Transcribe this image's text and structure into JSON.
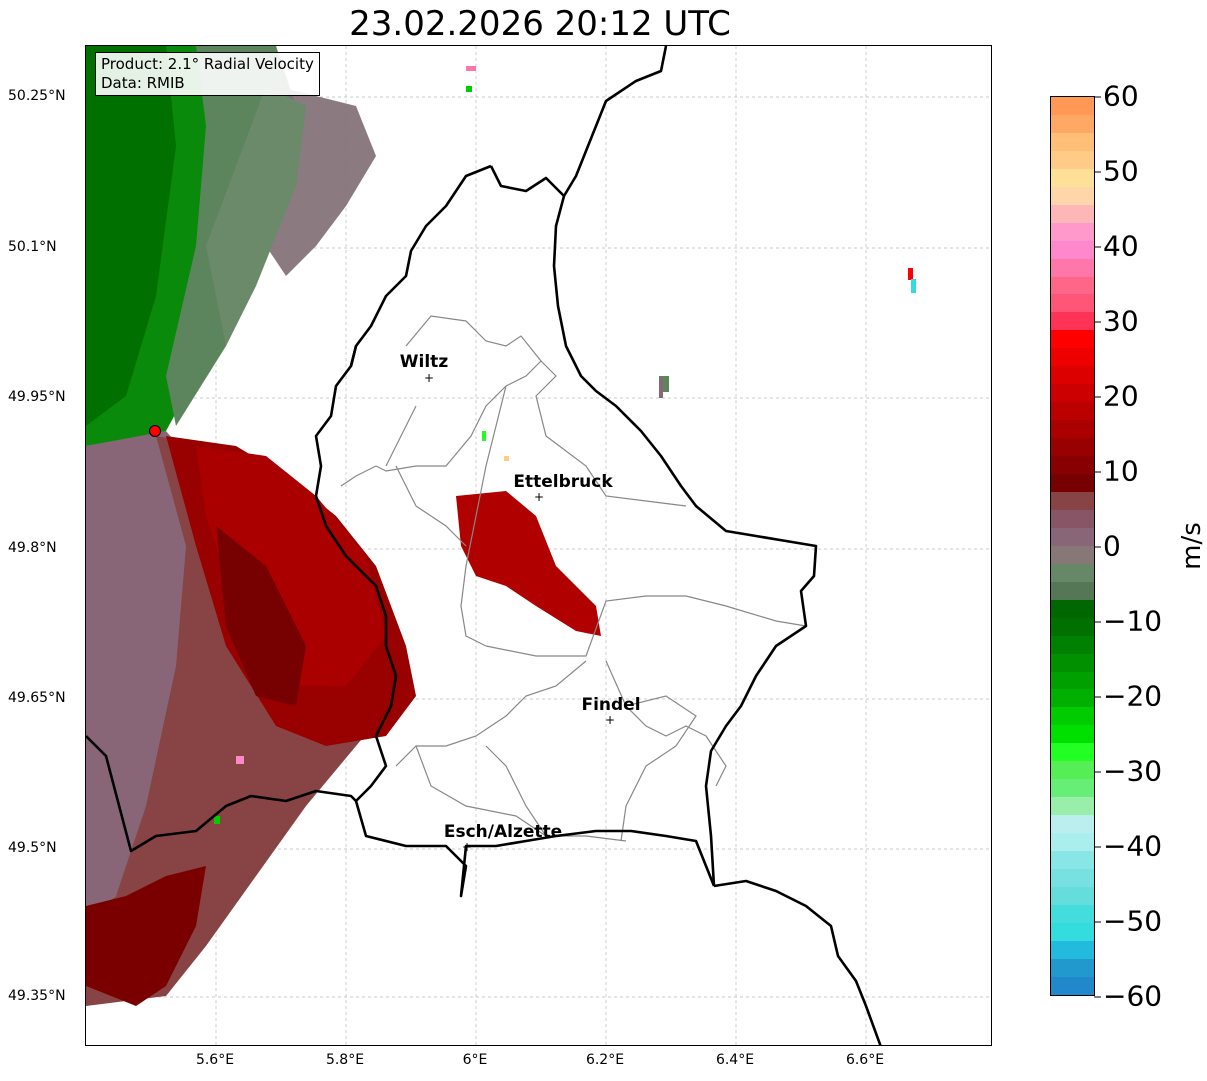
{
  "title": "23.02.2026 20:12 UTC",
  "info": {
    "product": "Product: 2.1° Radial Velocity",
    "data": "Data: RMIB"
  },
  "lat_ticks": [
    {
      "label": "50.25°N",
      "v": 50.25
    },
    {
      "label": "50.1°N",
      "v": 50.1
    },
    {
      "label": "49.95°N",
      "v": 49.95
    },
    {
      "label": "49.8°N",
      "v": 49.8
    },
    {
      "label": "49.65°N",
      "v": 49.65
    },
    {
      "label": "49.5°N",
      "v": 49.5
    },
    {
      "label": "49.35°N",
      "v": 49.35
    }
  ],
  "lon_ticks": [
    {
      "label": "5.6°E",
      "v": 5.6
    },
    {
      "label": "5.8°E",
      "v": 5.8
    },
    {
      "label": "6°E",
      "v": 6.0
    },
    {
      "label": "6.2°E",
      "v": 6.2
    },
    {
      "label": "6.4°E",
      "v": 6.4
    },
    {
      "label": "6.6°E",
      "v": 6.6
    }
  ],
  "cities": [
    {
      "name": "Wiltz",
      "lon": 5.935,
      "lat": 49.966
    },
    {
      "name": "Ettelbruck",
      "lon": 6.104,
      "lat": 49.847
    },
    {
      "name": "Findel",
      "lon": 6.211,
      "lat": 49.627
    },
    {
      "name": "Esch/Alzette",
      "lon": 5.99,
      "lat": 49.497
    }
  ],
  "colorbar": {
    "label": "m/s",
    "min": -60,
    "max": 60,
    "ticks": [
      "60",
      "50",
      "40",
      "30",
      "20",
      "10",
      "0",
      "−10",
      "−20",
      "−30",
      "−40",
      "−50",
      "−60"
    ],
    "colors": [
      "#ff9955",
      "#ffa866",
      "#ffbf77",
      "#ffcc88",
      "#ffe099",
      "#ffd5aa",
      "#ffb6b6",
      "#ff99cc",
      "#ff88cc",
      "#ff77aa",
      "#ff6688",
      "#ff5577",
      "#ff3355",
      "#ff0000",
      "#ee0000",
      "#dd0000",
      "#cc0000",
      "#bb0000",
      "#aa0000",
      "#990000",
      "#880000",
      "#770000",
      "#884444",
      "#885566",
      "#886677",
      "#887777",
      "#668866",
      "#557755",
      "#006600",
      "#007000",
      "#008000",
      "#009000",
      "#00a000",
      "#00b000",
      "#00cc00",
      "#00e000",
      "#22ff22",
      "#55ee55",
      "#66ee77",
      "#99eeaa",
      "#bbeeee",
      "#aaeeee",
      "#88e6e6",
      "#77e0e0",
      "#66dddd",
      "#44dddd",
      "#33dddd",
      "#22bbdd",
      "#2299cc",
      "#2288cc"
    ]
  },
  "radar_site_color": "#ff0000"
}
